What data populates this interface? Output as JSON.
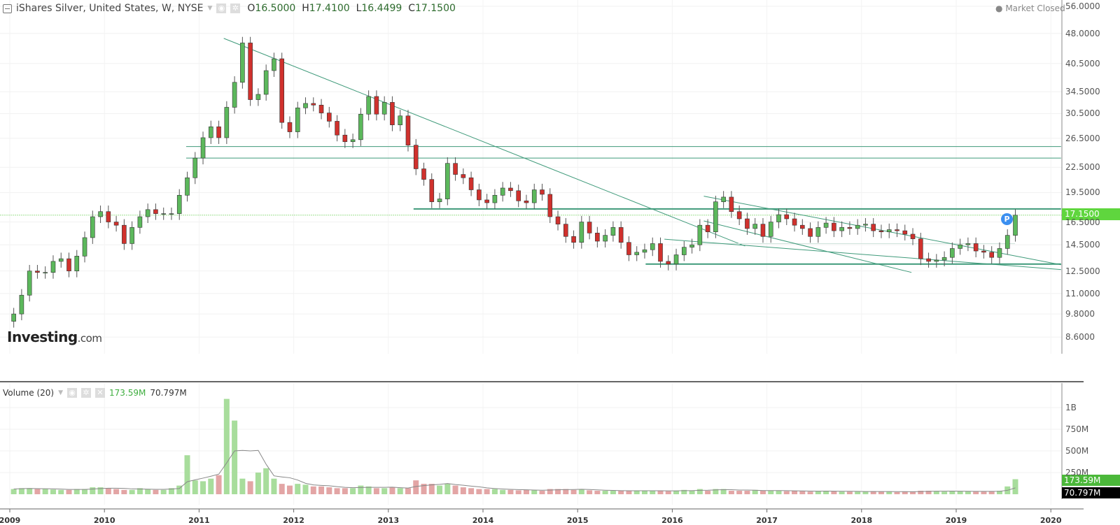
{
  "header": {
    "title": "iShares Silver, United States, W, NYSE",
    "open_label": "O",
    "open": "16.5000",
    "high_label": "H",
    "high": "17.4100",
    "low_label": "L",
    "low": "16.4499",
    "close_label": "C",
    "close": "17.1500",
    "market_status": "Market Closed"
  },
  "logo": {
    "main": "Investing",
    "suffix": ".com"
  },
  "price_marker": "P",
  "volume_header": {
    "label": "Volume (20)",
    "value": "173.59M",
    "ma_value": "70.797M"
  },
  "colors": {
    "up": "#5cb85c",
    "down": "#d0312d",
    "trendline": "#3f9a7a",
    "vol_up": "#a8dd9c",
    "vol_down": "#e3a5a5",
    "last_price": "#5fd63e"
  },
  "chart_data": [
    {
      "type": "candlestick",
      "scale": "log",
      "grid": true,
      "y_ticks": [
        "56.0000",
        "48.0000",
        "40.5000",
        "34.5000",
        "30.5000",
        "26.5000",
        "22.5000",
        "19.5000",
        "16.5000",
        "14.5000",
        "12.5000",
        "11.0000",
        "9.8000",
        "8.6000"
      ],
      "x_ticks": [
        "2009",
        "2010",
        "2011",
        "2012",
        "2013",
        "2014",
        "2015",
        "2016",
        "2017",
        "2018",
        "2019",
        "2020"
      ],
      "ylim": [
        8.2,
        58
      ],
      "xlim": [
        "2008-12-01",
        "2020-02-10"
      ],
      "first_open": 9.4,
      "months": [
        "2009-01",
        "2009-02",
        "2009-03",
        "2009-04",
        "2009-05",
        "2009-06",
        "2009-07",
        "2009-08",
        "2009-09",
        "2009-10",
        "2009-11",
        "2009-12",
        "2010-01",
        "2010-02",
        "2010-03",
        "2010-04",
        "2010-05",
        "2010-06",
        "2010-07",
        "2010-08",
        "2010-09",
        "2010-10",
        "2010-11",
        "2010-12",
        "2011-01",
        "2011-02",
        "2011-03",
        "2011-04",
        "2011-05",
        "2011-06",
        "2011-07",
        "2011-08",
        "2011-09",
        "2011-10",
        "2011-11",
        "2011-12",
        "2012-01",
        "2012-02",
        "2012-03",
        "2012-04",
        "2012-05",
        "2012-06",
        "2012-07",
        "2012-08",
        "2012-09",
        "2012-10",
        "2012-11",
        "2012-12",
        "2013-01",
        "2013-02",
        "2013-03",
        "2013-04",
        "2013-05",
        "2013-06",
        "2013-07",
        "2013-08",
        "2013-09",
        "2013-10",
        "2013-11",
        "2013-12",
        "2014-01",
        "2014-02",
        "2014-03",
        "2014-04",
        "2014-05",
        "2014-06",
        "2014-07",
        "2014-08",
        "2014-09",
        "2014-10",
        "2014-11",
        "2014-12",
        "2015-01",
        "2015-02",
        "2015-03",
        "2015-04",
        "2015-05",
        "2015-06",
        "2015-07",
        "2015-08",
        "2015-09",
        "2015-10",
        "2015-11",
        "2015-12",
        "2016-01",
        "2016-02",
        "2016-03",
        "2016-04",
        "2016-05",
        "2016-06",
        "2016-07",
        "2016-08",
        "2016-09",
        "2016-10",
        "2016-11",
        "2016-12",
        "2017-01",
        "2017-02",
        "2017-03",
        "2017-04",
        "2017-05",
        "2017-06",
        "2017-07",
        "2017-08",
        "2017-09",
        "2017-10",
        "2017-11",
        "2017-12",
        "2018-01",
        "2018-02",
        "2018-03",
        "2018-04",
        "2018-05",
        "2018-06",
        "2018-07",
        "2018-08",
        "2018-09",
        "2018-10",
        "2018-11",
        "2018-12",
        "2019-01",
        "2019-02",
        "2019-03",
        "2019-04",
        "2019-05",
        "2019-06",
        "2019-07",
        "2019-08"
      ],
      "close": [
        9.8,
        10.9,
        12.5,
        12.4,
        12.4,
        13.2,
        13.4,
        12.5,
        13.6,
        15.1,
        17.0,
        17.5,
        16.5,
        16.2,
        14.6,
        16.0,
        17.0,
        17.7,
        17.3,
        17.3,
        17.3,
        19.2,
        21.2,
        23.7,
        26.6,
        28.3,
        26.6,
        31.6,
        36.4,
        45.5,
        33.0,
        34.0,
        38.9,
        41.6,
        29.0,
        27.5,
        31.5,
        32.3,
        32.0,
        30.6,
        29.2,
        27.0,
        26.0,
        26.3,
        30.4,
        33.6,
        30.4,
        32.5,
        28.6,
        30.1,
        25.5,
        22.3,
        21.0,
        18.5,
        18.8,
        23.0,
        21.6,
        21.2,
        19.8,
        18.7,
        18.4,
        19.2,
        20.0,
        19.7,
        18.6,
        18.4,
        19.8,
        19.3,
        17.0,
        16.3,
        15.2,
        14.7,
        16.5,
        15.5,
        14.8,
        15.3,
        16.0,
        14.7,
        13.7,
        13.9,
        14.1,
        14.6,
        13.2,
        13.0,
        13.7,
        14.3,
        14.5,
        16.2,
        15.6,
        18.5,
        19.0,
        17.5,
        16.8,
        15.9,
        16.3,
        15.2,
        16.5,
        17.2,
        16.8,
        16.2,
        15.9,
        15.2,
        16.0,
        16.4,
        15.7,
        16.0,
        15.9,
        16.2,
        16.3,
        15.7,
        15.6,
        15.8,
        15.7,
        15.4,
        15.0,
        13.4,
        13.2,
        13.3,
        13.5,
        14.2,
        14.5,
        14.6,
        14.0,
        13.9,
        13.5,
        14.2,
        15.3,
        17.15
      ],
      "last_price": "17.1500",
      "trendlines": [
        {
          "from": [
            "2011-04-05",
            46.7
          ],
          "to": [
            "2016-10-08",
            14.4
          ],
          "weight": "normal"
        },
        {
          "from": [
            "2010-11-12",
            25.3
          ],
          "to": [
            "2020-02-10",
            25.3
          ],
          "weight": "normal"
        },
        {
          "from": [
            "2010-11-12",
            23.7
          ],
          "to": [
            "2020-02-10",
            23.7
          ],
          "weight": "normal"
        },
        {
          "from": [
            "2013-04-07",
            17.77
          ],
          "to": [
            "2020-02-10",
            17.77
          ],
          "weight": "bold"
        },
        {
          "from": [
            "2015-09-20",
            13.0
          ],
          "to": [
            "2020-02-10",
            13.0
          ],
          "weight": "bold"
        },
        {
          "from": [
            "2016-03-20",
            14.6
          ],
          "to": [
            "2019-08-15",
            14.6
          ],
          "weight": "light"
        },
        {
          "from": [
            "2016-05-01",
            19.1
          ],
          "to": [
            "2020-02-10",
            12.95
          ],
          "weight": "normal"
        },
        {
          "from": [
            "2016-05-01",
            16.6
          ],
          "to": [
            "2018-07-11",
            12.4
          ],
          "weight": "normal"
        },
        {
          "from": [
            "2015-12-01",
            14.97
          ],
          "to": [
            "2020-02-10",
            12.6
          ],
          "weight": "normal"
        }
      ]
    },
    {
      "type": "bar",
      "title": "Volume (20)",
      "y_ticks": [
        "1B",
        "750M",
        "500M",
        "250M"
      ],
      "ylim_millions": [
        0,
        1200
      ],
      "moving_average_period": 20,
      "volume_millions": [
        60,
        70,
        70,
        60,
        60,
        55,
        50,
        50,
        60,
        60,
        80,
        80,
        70,
        60,
        50,
        50,
        70,
        60,
        50,
        50,
        70,
        100,
        450,
        160,
        150,
        180,
        220,
        1100,
        850,
        180,
        150,
        250,
        300,
        180,
        120,
        100,
        120,
        110,
        90,
        90,
        80,
        70,
        70,
        70,
        100,
        90,
        70,
        70,
        80,
        70,
        70,
        160,
        120,
        120,
        100,
        120,
        100,
        80,
        70,
        60,
        60,
        60,
        50,
        50,
        45,
        50,
        45,
        40,
        60,
        60,
        60,
        50,
        55,
        45,
        40,
        40,
        40,
        40,
        40,
        40,
        40,
        40,
        40,
        35,
        40,
        50,
        40,
        60,
        40,
        60,
        60,
        40,
        40,
        40,
        50,
        40,
        40,
        40,
        35,
        40,
        35,
        30,
        35,
        40,
        35,
        30,
        30,
        30,
        30,
        35,
        30,
        30,
        25,
        30,
        30,
        40,
        40,
        35,
        30,
        35,
        35,
        35,
        30,
        30,
        35,
        40,
        90,
        173.59
      ],
      "last_volume": "173.59M",
      "last_ma": "70.797M"
    }
  ]
}
